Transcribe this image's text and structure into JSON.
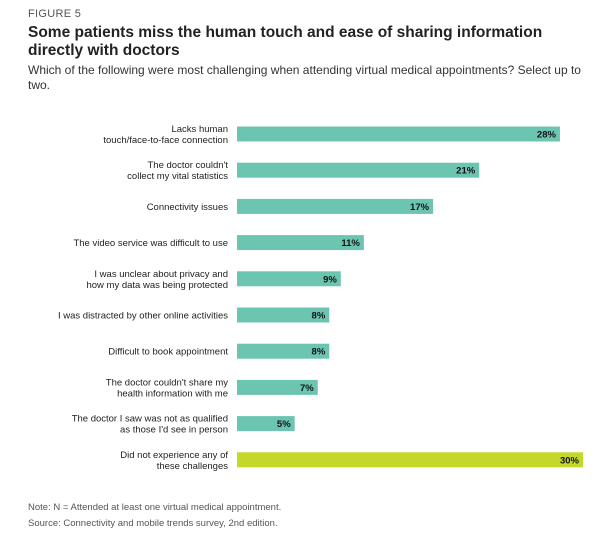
{
  "header": {
    "figure_label": "FIGURE 5",
    "title": "Some patients miss the human touch and ease of sharing information directly with doctors",
    "subtitle": "Which of the following were most challenging when attending virtual medical appointments? Select up to two."
  },
  "chart_data": {
    "type": "bar",
    "orientation": "horizontal",
    "categories": [
      [
        "Lacks human",
        "touch/face-to-face connection"
      ],
      [
        "The doctor couldn't",
        "collect my vital statistics"
      ],
      [
        "Connectivity issues"
      ],
      [
        "The video service was difficult to use"
      ],
      [
        "I was unclear about privacy and",
        "how my data was being protected"
      ],
      [
        "I was distracted by other online activities"
      ],
      [
        "Difficult to book appointment"
      ],
      [
        "The doctor couldn't share my",
        "health information with me"
      ],
      [
        "The doctor I saw was not as qualified",
        "as those I'd see in person"
      ],
      [
        "Did not experience any of",
        "these challenges"
      ]
    ],
    "values": [
      28,
      21,
      17,
      11,
      9,
      8,
      8,
      7,
      5,
      30
    ],
    "value_labels": [
      "28%",
      "21%",
      "17%",
      "11%",
      "9%",
      "8%",
      "8%",
      "7%",
      "5%",
      "30%"
    ],
    "colors": [
      "#6cc5b0",
      "#6cc5b0",
      "#6cc5b0",
      "#6cc5b0",
      "#6cc5b0",
      "#6cc5b0",
      "#6cc5b0",
      "#6cc5b0",
      "#6cc5b0",
      "#c3d829"
    ],
    "xlim": [
      0,
      30
    ],
    "grid": false,
    "legend": "none"
  },
  "footer": {
    "note": "Note: N = Attended at least one virtual medical appointment.",
    "source": "Source: Connectivity and mobile trends survey, 2nd edition."
  }
}
